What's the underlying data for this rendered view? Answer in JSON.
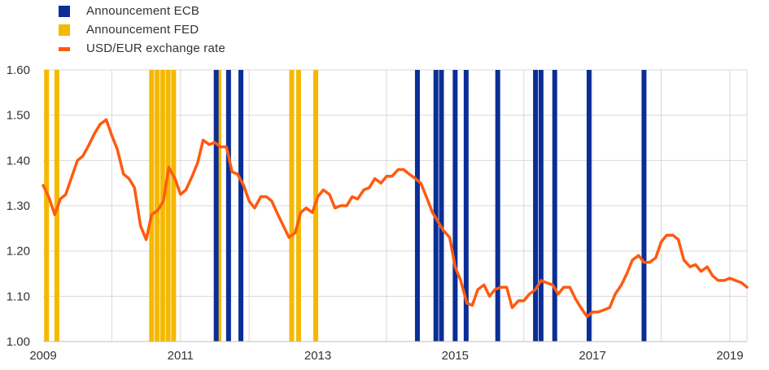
{
  "colors": {
    "ecb": "#0a2e96",
    "fed": "#f5b800",
    "usd_eur": "#ff5a0f",
    "grid": "#d9d9d9",
    "axis_text": "#333333"
  },
  "legend": {
    "ecb": "Announcement ECB",
    "fed": "Announcement  FED",
    "usd_eur": "USD/EUR  exchange  rate"
  },
  "chart_data": {
    "type": "line",
    "title": "",
    "xlabel": "",
    "ylabel": "",
    "x_range": [
      2009.0,
      2019.25
    ],
    "ylim": [
      1.0,
      1.6
    ],
    "y_ticks": [
      "1.00",
      "1.10",
      "1.20",
      "1.30",
      "1.40",
      "1.50",
      "1.60"
    ],
    "x_ticks": [
      "2009",
      "2011",
      "2013",
      "2015",
      "2017",
      "2019"
    ],
    "grid": "vertical yearly and horizontal",
    "legend_position": "top-left",
    "series": [
      {
        "name": "USD/EUR  exchange  rate",
        "x": [
          2009.0,
          2009.08,
          2009.17,
          2009.25,
          2009.33,
          2009.42,
          2009.5,
          2009.58,
          2009.67,
          2009.75,
          2009.83,
          2009.92,
          2010.0,
          2010.08,
          2010.17,
          2010.25,
          2010.33,
          2010.42,
          2010.5,
          2010.58,
          2010.67,
          2010.75,
          2010.83,
          2010.92,
          2011.0,
          2011.08,
          2011.17,
          2011.25,
          2011.33,
          2011.42,
          2011.5,
          2011.58,
          2011.67,
          2011.75,
          2011.83,
          2011.92,
          2012.0,
          2012.08,
          2012.17,
          2012.25,
          2012.33,
          2012.42,
          2012.5,
          2012.58,
          2012.67,
          2012.75,
          2012.83,
          2012.92,
          2013.0,
          2013.08,
          2013.17,
          2013.25,
          2013.33,
          2013.42,
          2013.5,
          2013.58,
          2013.67,
          2013.75,
          2013.83,
          2013.92,
          2014.0,
          2014.08,
          2014.17,
          2014.25,
          2014.33,
          2014.42,
          2014.5,
          2014.58,
          2014.67,
          2014.75,
          2014.83,
          2014.92,
          2015.0,
          2015.08,
          2015.17,
          2015.25,
          2015.33,
          2015.42,
          2015.5,
          2015.58,
          2015.67,
          2015.75,
          2015.83,
          2015.92,
          2016.0,
          2016.08,
          2016.17,
          2016.25,
          2016.33,
          2016.42,
          2016.5,
          2016.58,
          2016.67,
          2016.75,
          2016.83,
          2016.92,
          2017.0,
          2017.08,
          2017.17,
          2017.25,
          2017.33,
          2017.42,
          2017.5,
          2017.58,
          2017.67,
          2017.75,
          2017.83,
          2017.92,
          2018.0,
          2018.08,
          2018.17,
          2018.25,
          2018.33,
          2018.42,
          2018.5,
          2018.58,
          2018.67,
          2018.75,
          2018.83,
          2018.92,
          2019.0,
          2019.08,
          2019.17,
          2019.25
        ],
        "values": [
          1.345,
          1.32,
          1.28,
          1.315,
          1.325,
          1.365,
          1.4,
          1.41,
          1.435,
          1.46,
          1.48,
          1.49,
          1.455,
          1.425,
          1.37,
          1.36,
          1.34,
          1.255,
          1.225,
          1.28,
          1.29,
          1.31,
          1.385,
          1.36,
          1.325,
          1.335,
          1.365,
          1.395,
          1.445,
          1.435,
          1.44,
          1.43,
          1.43,
          1.375,
          1.37,
          1.345,
          1.31,
          1.295,
          1.32,
          1.32,
          1.31,
          1.28,
          1.255,
          1.23,
          1.24,
          1.285,
          1.295,
          1.285,
          1.32,
          1.335,
          1.325,
          1.295,
          1.3,
          1.3,
          1.32,
          1.315,
          1.335,
          1.34,
          1.36,
          1.35,
          1.365,
          1.365,
          1.38,
          1.38,
          1.37,
          1.36,
          1.35,
          1.32,
          1.285,
          1.265,
          1.245,
          1.23,
          1.165,
          1.135,
          1.085,
          1.08,
          1.115,
          1.125,
          1.1,
          1.115,
          1.12,
          1.12,
          1.075,
          1.09,
          1.09,
          1.105,
          1.115,
          1.135,
          1.13,
          1.125,
          1.105,
          1.12,
          1.12,
          1.095,
          1.075,
          1.055,
          1.065,
          1.065,
          1.07,
          1.075,
          1.105,
          1.125,
          1.15,
          1.18,
          1.19,
          1.175,
          1.175,
          1.185,
          1.22,
          1.235,
          1.235,
          1.225,
          1.18,
          1.165,
          1.17,
          1.155,
          1.165,
          1.145,
          1.135,
          1.135,
          1.14,
          1.135,
          1.13,
          1.12
        ]
      }
    ],
    "ecb_announcements": [
      2011.52,
      2011.7,
      2011.88,
      2014.45,
      2014.72,
      2014.8,
      2015.0,
      2015.16,
      2015.62,
      2016.17,
      2016.25,
      2016.45,
      2016.95,
      2017.75
    ],
    "fed_announcements": [
      2009.05,
      2009.2,
      2010.58,
      2010.66,
      2010.74,
      2010.82,
      2010.9,
      2011.56,
      2012.62,
      2012.72,
      2012.97
    ]
  }
}
